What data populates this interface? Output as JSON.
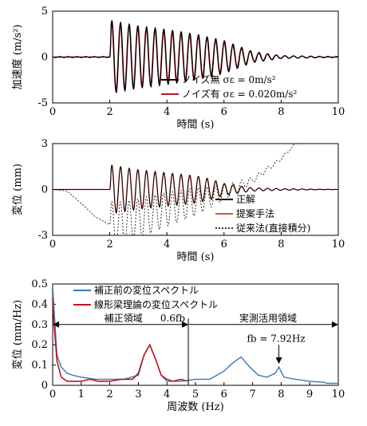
{
  "colors": {
    "black": "#000000",
    "red": "#c0141e",
    "blue": "#3a7ab5",
    "dotted": "#333333"
  },
  "chart_data": [
    {
      "type": "line",
      "xlabel": "時間 (s)",
      "ylabel": "加速度 (m/s²)",
      "xlim": [
        0,
        10
      ],
      "ylim": [
        -5,
        5
      ],
      "xticks": [
        "0",
        "2",
        "4",
        "6",
        "8",
        "10"
      ],
      "yticks": [
        "-5",
        "0",
        "5"
      ],
      "legend_position": "bottom-right",
      "series": [
        {
          "name": "ノイズ無 σε = 0m/s²",
          "color": "#000000",
          "envelope": {
            "x": [
              0,
              2.0,
              2.05,
              2.3,
              3.0,
              4.0,
              5.0,
              6.0,
              6.5,
              7.0,
              8.0,
              10.0
            ],
            "amp": [
              0,
              0,
              4.0,
              3.8,
              3.4,
              3.0,
              2.5,
              1.8,
              1.2,
              0.6,
              0.15,
              0
            ]
          },
          "frequency_hz": 3.3
        },
        {
          "name": "ノイズ有 σε = 0.020m/s²",
          "color": "#c0141e",
          "envelope": {
            "x": [
              0,
              2.0,
              2.05,
              2.3,
              3.0,
              4.0,
              5.0,
              6.0,
              6.5,
              7.0,
              8.0,
              10.0
            ],
            "amp": [
              0.06,
              0.06,
              3.8,
              3.6,
              3.2,
              2.8,
              2.3,
              1.6,
              1.0,
              0.5,
              0.15,
              0.06
            ]
          },
          "frequency_hz": 3.3
        }
      ]
    },
    {
      "type": "line",
      "xlabel": "時間 (s)",
      "ylabel": "変位 (mm)",
      "xlim": [
        0,
        10
      ],
      "ylim": [
        -3,
        3
      ],
      "xticks": [
        "0",
        "2",
        "4",
        "6",
        "8",
        "10"
      ],
      "yticks": [
        "-3",
        "0",
        "3"
      ],
      "legend_position": "bottom-right",
      "series": [
        {
          "name": "正解",
          "color": "#000000",
          "envelope": {
            "x": [
              0,
              2.0,
              2.05,
              3.0,
              4.0,
              5.0,
              5.5,
              6.0,
              7.0,
              8.0,
              10.0
            ],
            "amp": [
              0,
              0,
              1.6,
              1.3,
              1.1,
              0.9,
              0.7,
              0.4,
              0.1,
              0.05,
              0
            ]
          },
          "frequency_hz": 3.3
        },
        {
          "name": "提案手法",
          "color": "#e74c3c",
          "envelope": {
            "x": [
              0,
              2.0,
              2.05,
              3.0,
              4.0,
              5.0,
              5.5,
              6.0,
              7.0,
              8.0,
              10.0
            ],
            "amp": [
              0,
              0,
              1.5,
              1.25,
              1.05,
              0.85,
              0.6,
              0.35,
              0.1,
              0.05,
              0
            ]
          },
          "frequency_hz": 3.3
        },
        {
          "name": "従来法(直接積分)",
          "color": "#333333",
          "drift": {
            "x": [
              0,
              0.5,
              1.0,
              1.5,
              2.0,
              2.5,
              3.0,
              4.0,
              5.0,
              6.0,
              7.0,
              8.0,
              8.5
            ],
            "y": [
              0,
              -0.1,
              -0.9,
              -1.8,
              -2.3,
              -2.2,
              -1.9,
              -1.3,
              -0.8,
              -0.2,
              0.6,
              2.0,
              3.0
            ]
          },
          "envelope": {
            "x": [
              0,
              2.0,
              2.05,
              3.0,
              4.0,
              5.0,
              6.0,
              7.0,
              8.5
            ],
            "amp": [
              0,
              0,
              1.5,
              1.3,
              1.1,
              0.9,
              0.5,
              0.2,
              0.05
            ]
          },
          "frequency_hz": 3.3
        }
      ]
    },
    {
      "type": "line",
      "xlabel": "周波数 (Hz)",
      "ylabel": "変位 (mm/Hz)",
      "xlim": [
        0,
        10
      ],
      "ylim": [
        0,
        0.5
      ],
      "xticks": [
        "0",
        "1",
        "2",
        "3",
        "4",
        "5",
        "6",
        "7",
        "8",
        "9",
        "10"
      ],
      "yticks": [
        "0",
        "0.1",
        "0.2",
        "0.3",
        "0.4",
        "0.5"
      ],
      "legend_position": "top-center",
      "series": [
        {
          "name": "補正前の変位スペクトル",
          "color": "#3a7ab5",
          "x": [
            0,
            0.05,
            0.15,
            0.3,
            0.5,
            0.7,
            1.0,
            1.5,
            2.0,
            2.5,
            3.0,
            3.2,
            3.4,
            3.6,
            3.8,
            4.0,
            4.5,
            5.0,
            5.5,
            6.0,
            6.3,
            6.6,
            6.9,
            7.2,
            7.5,
            7.8,
            7.92,
            8.1,
            8.5,
            9.0,
            9.5,
            9.6,
            10.0
          ],
          "y": [
            0.49,
            0.37,
            0.15,
            0.09,
            0.06,
            0.05,
            0.04,
            0.03,
            0.03,
            0.03,
            0.05,
            0.15,
            0.2,
            0.13,
            0.05,
            0.02,
            0.02,
            0.03,
            0.03,
            0.07,
            0.11,
            0.14,
            0.09,
            0.05,
            0.04,
            0.06,
            0.09,
            0.04,
            0.03,
            0.02,
            0.015,
            0.01,
            0.01
          ]
        },
        {
          "name": "線形梁理論の変位スペクトル",
          "color": "#c0141e",
          "x": [
            0,
            0.05,
            0.15,
            0.3,
            0.5,
            0.7,
            1.0,
            1.3,
            1.6,
            2.0,
            2.4,
            2.8,
            3.0,
            3.2,
            3.4,
            3.6,
            3.8,
            4.0,
            4.2,
            4.5,
            4.7
          ],
          "y": [
            0.43,
            0.3,
            0.12,
            0.04,
            0.02,
            0.02,
            0.02,
            0.03,
            0.02,
            0.02,
            0.03,
            0.03,
            0.06,
            0.15,
            0.2,
            0.13,
            0.05,
            0.03,
            0.02,
            0.03,
            0.02
          ]
        }
      ],
      "annotations": {
        "region_correction": "補正領域",
        "region_measure": "実測活用領域",
        "boundary_label": "0.6fb",
        "boundary_x": 4.75,
        "fb_label": "fb = 7.92Hz",
        "fb_x": 7.92
      }
    }
  ]
}
